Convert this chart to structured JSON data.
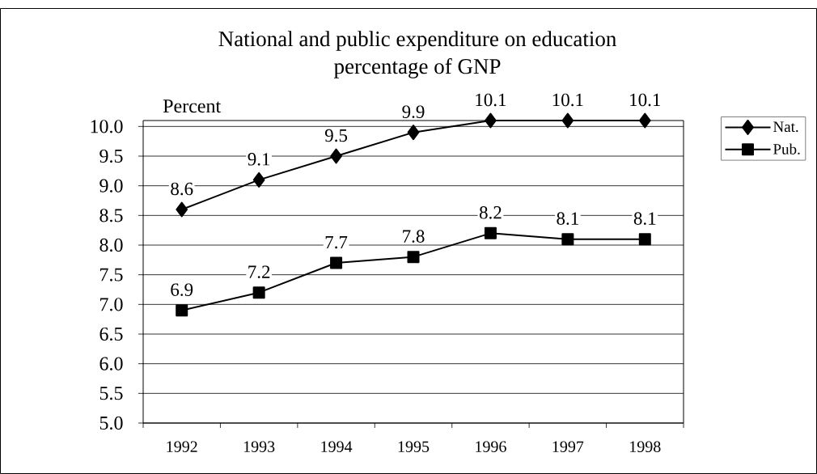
{
  "chart_data": {
    "type": "line",
    "title": "National and public expenditure on education",
    "subtitle": "percentage of GNP",
    "ylabel": "Percent",
    "categories": [
      "1992",
      "1993",
      "1994",
      "1995",
      "1996",
      "1997",
      "1998"
    ],
    "series": [
      {
        "name": "Nat.",
        "color": "#000000",
        "marker": "diamond",
        "values": [
          8.6,
          9.1,
          9.5,
          9.9,
          10.1,
          10.1,
          10.1
        ]
      },
      {
        "name": "Pub.",
        "color": "#000000",
        "marker": "square",
        "values": [
          6.9,
          7.2,
          7.7,
          7.8,
          8.2,
          8.1,
          8.1
        ]
      }
    ],
    "ylim": [
      5.0,
      10.1
    ],
    "yticks": [
      {
        "value": 5,
        "label": "5.0"
      },
      5.5,
      {
        "value": 6,
        "label": "6.0"
      },
      6.5,
      {
        "value": 7,
        "label": "7.0"
      },
      7.5,
      {
        "value": 8,
        "label": "8.0"
      },
      8.5,
      {
        "value": 9,
        "label": "9.0"
      },
      9.5,
      {
        "value": 10,
        "label": "10.0"
      }
    ],
    "grid": "y",
    "legend": "right",
    "data_labels": true,
    "line_style": "solid"
  }
}
